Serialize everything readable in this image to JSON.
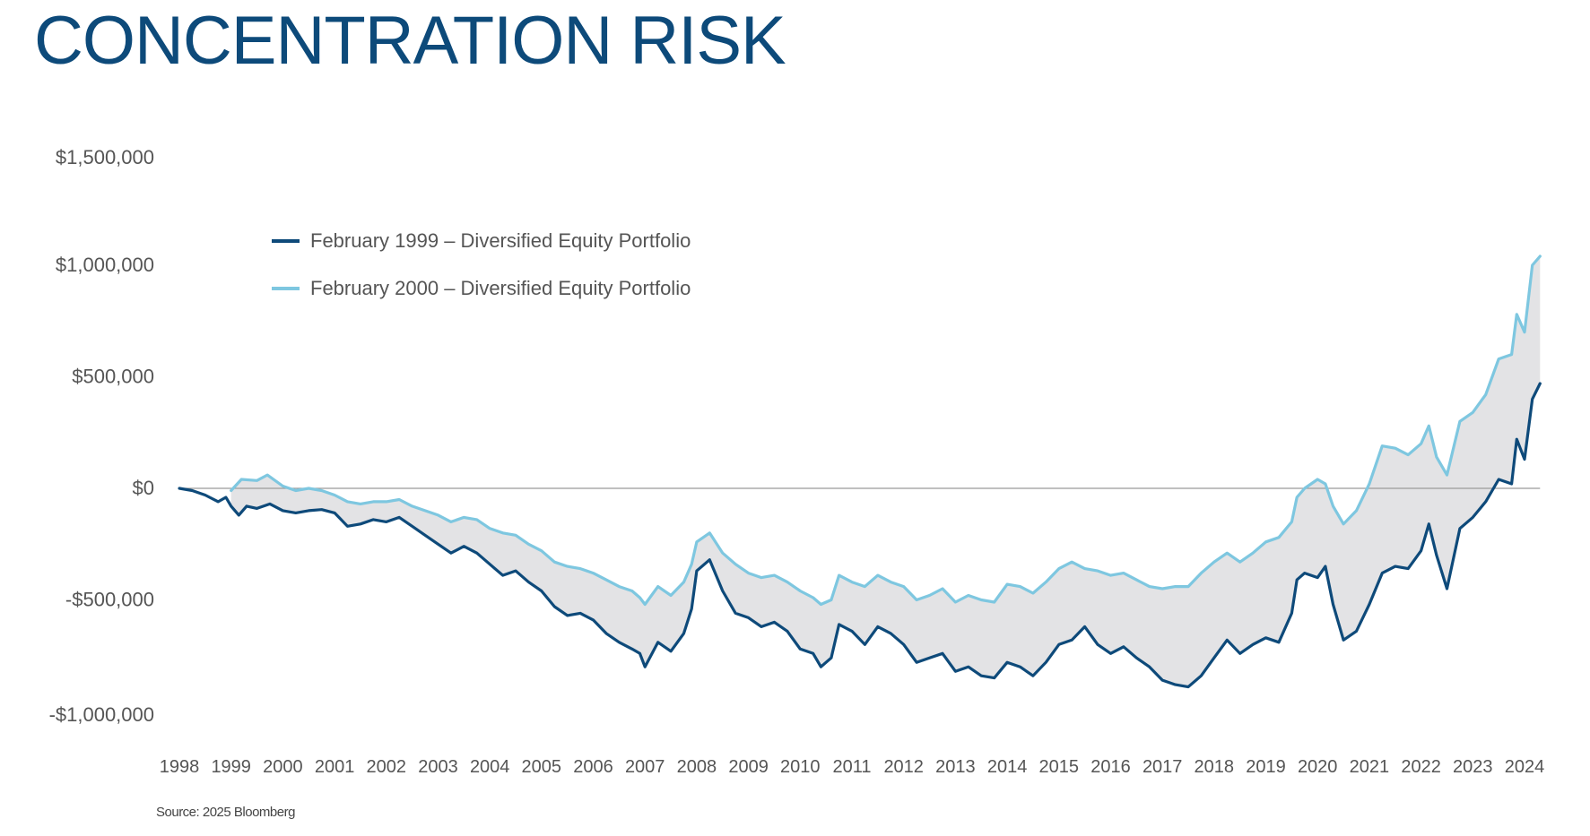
{
  "title": "CONCENTRATION RISK",
  "source": "Source: 2025 Bloomberg",
  "colors": {
    "title": "#0d4a7a",
    "series1": "#0e4a7a",
    "series2": "#7ec7e0",
    "fill": "#e3e3e5",
    "zero_line": "#9a9a9a",
    "text": "#555555"
  },
  "chart_data": {
    "type": "line",
    "title": "CONCENTRATION RISK",
    "xlabel": "",
    "ylabel": "",
    "xlim": [
      1998,
      2024
    ],
    "ylim": [
      -1000000,
      1500000
    ],
    "x_ticks": [
      "1998",
      "1999",
      "2000",
      "2001",
      "2002",
      "2003",
      "2004",
      "2005",
      "2006",
      "2007",
      "2008",
      "2009",
      "2010",
      "2011",
      "2012",
      "2013",
      "2014",
      "2015",
      "2016",
      "2017",
      "2018",
      "2019",
      "2020",
      "2021",
      "2022",
      "2023",
      "2024"
    ],
    "y_ticks": [
      {
        "value": 1500000,
        "label": "$1,500,000"
      },
      {
        "value": 1000000,
        "label": "$1,000,000"
      },
      {
        "value": 500000,
        "label": "$500,000"
      },
      {
        "value": 0,
        "label": "$0"
      },
      {
        "value": -500000,
        "label": "-$500,000"
      },
      {
        "value": -1000000,
        "label": "-$1,000,000"
      }
    ],
    "legend_position": "top-left",
    "shaded_between_series": true,
    "series": [
      {
        "name": "February 1999 – Diversified Equity Portfolio",
        "points": [
          [
            1998.0,
            0
          ],
          [
            1998.25,
            -10000
          ],
          [
            1998.5,
            -30000
          ],
          [
            1998.75,
            -60000
          ],
          [
            1998.9,
            -40000
          ],
          [
            1999.0,
            -80000
          ],
          [
            1999.15,
            -120000
          ],
          [
            1999.3,
            -80000
          ],
          [
            1999.5,
            -90000
          ],
          [
            1999.75,
            -70000
          ],
          [
            2000.0,
            -100000
          ],
          [
            2000.25,
            -110000
          ],
          [
            2000.5,
            -100000
          ],
          [
            2000.75,
            -95000
          ],
          [
            2001.0,
            -110000
          ],
          [
            2001.25,
            -170000
          ],
          [
            2001.5,
            -160000
          ],
          [
            2001.75,
            -140000
          ],
          [
            2002.0,
            -150000
          ],
          [
            2002.25,
            -130000
          ],
          [
            2002.5,
            -170000
          ],
          [
            2002.75,
            -210000
          ],
          [
            2003.0,
            -250000
          ],
          [
            2003.25,
            -290000
          ],
          [
            2003.5,
            -260000
          ],
          [
            2003.75,
            -290000
          ],
          [
            2004.0,
            -340000
          ],
          [
            2004.25,
            -390000
          ],
          [
            2004.5,
            -370000
          ],
          [
            2004.75,
            -420000
          ],
          [
            2005.0,
            -460000
          ],
          [
            2005.25,
            -530000
          ],
          [
            2005.5,
            -570000
          ],
          [
            2005.75,
            -560000
          ],
          [
            2006.0,
            -590000
          ],
          [
            2006.25,
            -650000
          ],
          [
            2006.5,
            -690000
          ],
          [
            2006.75,
            -720000
          ],
          [
            2006.9,
            -740000
          ],
          [
            2007.0,
            -800000
          ],
          [
            2007.25,
            -690000
          ],
          [
            2007.5,
            -730000
          ],
          [
            2007.75,
            -650000
          ],
          [
            2007.9,
            -540000
          ],
          [
            2008.0,
            -370000
          ],
          [
            2008.25,
            -320000
          ],
          [
            2008.5,
            -460000
          ],
          [
            2008.75,
            -560000
          ],
          [
            2009.0,
            -580000
          ],
          [
            2009.25,
            -620000
          ],
          [
            2009.5,
            -600000
          ],
          [
            2009.75,
            -640000
          ],
          [
            2010.0,
            -720000
          ],
          [
            2010.25,
            -740000
          ],
          [
            2010.4,
            -800000
          ],
          [
            2010.6,
            -760000
          ],
          [
            2010.75,
            -610000
          ],
          [
            2011.0,
            -640000
          ],
          [
            2011.25,
            -700000
          ],
          [
            2011.5,
            -620000
          ],
          [
            2011.75,
            -650000
          ],
          [
            2012.0,
            -700000
          ],
          [
            2012.25,
            -780000
          ],
          [
            2012.5,
            -760000
          ],
          [
            2012.75,
            -740000
          ],
          [
            2013.0,
            -820000
          ],
          [
            2013.25,
            -800000
          ],
          [
            2013.5,
            -840000
          ],
          [
            2013.75,
            -850000
          ],
          [
            2014.0,
            -780000
          ],
          [
            2014.25,
            -800000
          ],
          [
            2014.5,
            -840000
          ],
          [
            2014.75,
            -780000
          ],
          [
            2015.0,
            -700000
          ],
          [
            2015.25,
            -680000
          ],
          [
            2015.5,
            -620000
          ],
          [
            2015.75,
            -700000
          ],
          [
            2016.0,
            -740000
          ],
          [
            2016.25,
            -710000
          ],
          [
            2016.5,
            -760000
          ],
          [
            2016.75,
            -800000
          ],
          [
            2017.0,
            -860000
          ],
          [
            2017.25,
            -880000
          ],
          [
            2017.5,
            -890000
          ],
          [
            2017.75,
            -840000
          ],
          [
            2018.0,
            -760000
          ],
          [
            2018.25,
            -680000
          ],
          [
            2018.5,
            -740000
          ],
          [
            2018.75,
            -700000
          ],
          [
            2019.0,
            -670000
          ],
          [
            2019.25,
            -690000
          ],
          [
            2019.5,
            -560000
          ],
          [
            2019.6,
            -410000
          ],
          [
            2019.75,
            -380000
          ],
          [
            2020.0,
            -400000
          ],
          [
            2020.15,
            -350000
          ],
          [
            2020.3,
            -520000
          ],
          [
            2020.5,
            -680000
          ],
          [
            2020.75,
            -640000
          ],
          [
            2021.0,
            -520000
          ],
          [
            2021.25,
            -380000
          ],
          [
            2021.5,
            -350000
          ],
          [
            2021.75,
            -360000
          ],
          [
            2022.0,
            -280000
          ],
          [
            2022.15,
            -160000
          ],
          [
            2022.3,
            -300000
          ],
          [
            2022.5,
            -450000
          ],
          [
            2022.75,
            -180000
          ],
          [
            2023.0,
            -130000
          ],
          [
            2023.25,
            -60000
          ],
          [
            2023.5,
            40000
          ],
          [
            2023.75,
            20000
          ],
          [
            2023.85,
            220000
          ],
          [
            2024.0,
            130000
          ],
          [
            2024.15,
            400000
          ],
          [
            2024.3,
            470000
          ]
        ]
      },
      {
        "name": "February 2000 – Diversified Equity Portfolio",
        "points": [
          [
            1999.0,
            -10000
          ],
          [
            1999.2,
            40000
          ],
          [
            1999.5,
            35000
          ],
          [
            1999.7,
            60000
          ],
          [
            2000.0,
            10000
          ],
          [
            2000.25,
            -10000
          ],
          [
            2000.5,
            0
          ],
          [
            2000.75,
            -10000
          ],
          [
            2001.0,
            -30000
          ],
          [
            2001.25,
            -60000
          ],
          [
            2001.5,
            -70000
          ],
          [
            2001.75,
            -60000
          ],
          [
            2002.0,
            -60000
          ],
          [
            2002.25,
            -50000
          ],
          [
            2002.5,
            -80000
          ],
          [
            2002.75,
            -100000
          ],
          [
            2003.0,
            -120000
          ],
          [
            2003.25,
            -150000
          ],
          [
            2003.5,
            -130000
          ],
          [
            2003.75,
            -140000
          ],
          [
            2004.0,
            -180000
          ],
          [
            2004.25,
            -200000
          ],
          [
            2004.5,
            -210000
          ],
          [
            2004.75,
            -250000
          ],
          [
            2005.0,
            -280000
          ],
          [
            2005.25,
            -330000
          ],
          [
            2005.5,
            -350000
          ],
          [
            2005.75,
            -360000
          ],
          [
            2006.0,
            -380000
          ],
          [
            2006.25,
            -410000
          ],
          [
            2006.5,
            -440000
          ],
          [
            2006.75,
            -460000
          ],
          [
            2006.9,
            -490000
          ],
          [
            2007.0,
            -520000
          ],
          [
            2007.25,
            -440000
          ],
          [
            2007.5,
            -480000
          ],
          [
            2007.75,
            -420000
          ],
          [
            2007.9,
            -340000
          ],
          [
            2008.0,
            -240000
          ],
          [
            2008.25,
            -200000
          ],
          [
            2008.5,
            -290000
          ],
          [
            2008.75,
            -340000
          ],
          [
            2009.0,
            -380000
          ],
          [
            2009.25,
            -400000
          ],
          [
            2009.5,
            -390000
          ],
          [
            2009.75,
            -420000
          ],
          [
            2010.0,
            -460000
          ],
          [
            2010.25,
            -490000
          ],
          [
            2010.4,
            -520000
          ],
          [
            2010.6,
            -500000
          ],
          [
            2010.75,
            -390000
          ],
          [
            2011.0,
            -420000
          ],
          [
            2011.25,
            -440000
          ],
          [
            2011.5,
            -390000
          ],
          [
            2011.75,
            -420000
          ],
          [
            2012.0,
            -440000
          ],
          [
            2012.25,
            -500000
          ],
          [
            2012.5,
            -480000
          ],
          [
            2012.75,
            -450000
          ],
          [
            2013.0,
            -510000
          ],
          [
            2013.25,
            -480000
          ],
          [
            2013.5,
            -500000
          ],
          [
            2013.75,
            -510000
          ],
          [
            2014.0,
            -430000
          ],
          [
            2014.25,
            -440000
          ],
          [
            2014.5,
            -470000
          ],
          [
            2014.75,
            -420000
          ],
          [
            2015.0,
            -360000
          ],
          [
            2015.25,
            -330000
          ],
          [
            2015.5,
            -360000
          ],
          [
            2015.75,
            -370000
          ],
          [
            2016.0,
            -390000
          ],
          [
            2016.25,
            -380000
          ],
          [
            2016.5,
            -410000
          ],
          [
            2016.75,
            -440000
          ],
          [
            2017.0,
            -450000
          ],
          [
            2017.25,
            -440000
          ],
          [
            2017.5,
            -440000
          ],
          [
            2017.75,
            -380000
          ],
          [
            2018.0,
            -330000
          ],
          [
            2018.25,
            -290000
          ],
          [
            2018.5,
            -330000
          ],
          [
            2018.75,
            -290000
          ],
          [
            2019.0,
            -240000
          ],
          [
            2019.25,
            -220000
          ],
          [
            2019.5,
            -150000
          ],
          [
            2019.6,
            -40000
          ],
          [
            2019.75,
            0
          ],
          [
            2020.0,
            40000
          ],
          [
            2020.15,
            20000
          ],
          [
            2020.3,
            -80000
          ],
          [
            2020.5,
            -160000
          ],
          [
            2020.75,
            -100000
          ],
          [
            2021.0,
            20000
          ],
          [
            2021.25,
            190000
          ],
          [
            2021.5,
            180000
          ],
          [
            2021.75,
            150000
          ],
          [
            2022.0,
            200000
          ],
          [
            2022.15,
            280000
          ],
          [
            2022.3,
            140000
          ],
          [
            2022.5,
            60000
          ],
          [
            2022.75,
            300000
          ],
          [
            2023.0,
            340000
          ],
          [
            2023.25,
            420000
          ],
          [
            2023.5,
            580000
          ],
          [
            2023.75,
            600000
          ],
          [
            2023.85,
            780000
          ],
          [
            2024.0,
            700000
          ],
          [
            2024.15,
            1000000
          ],
          [
            2024.3,
            1040000
          ]
        ]
      }
    ]
  }
}
